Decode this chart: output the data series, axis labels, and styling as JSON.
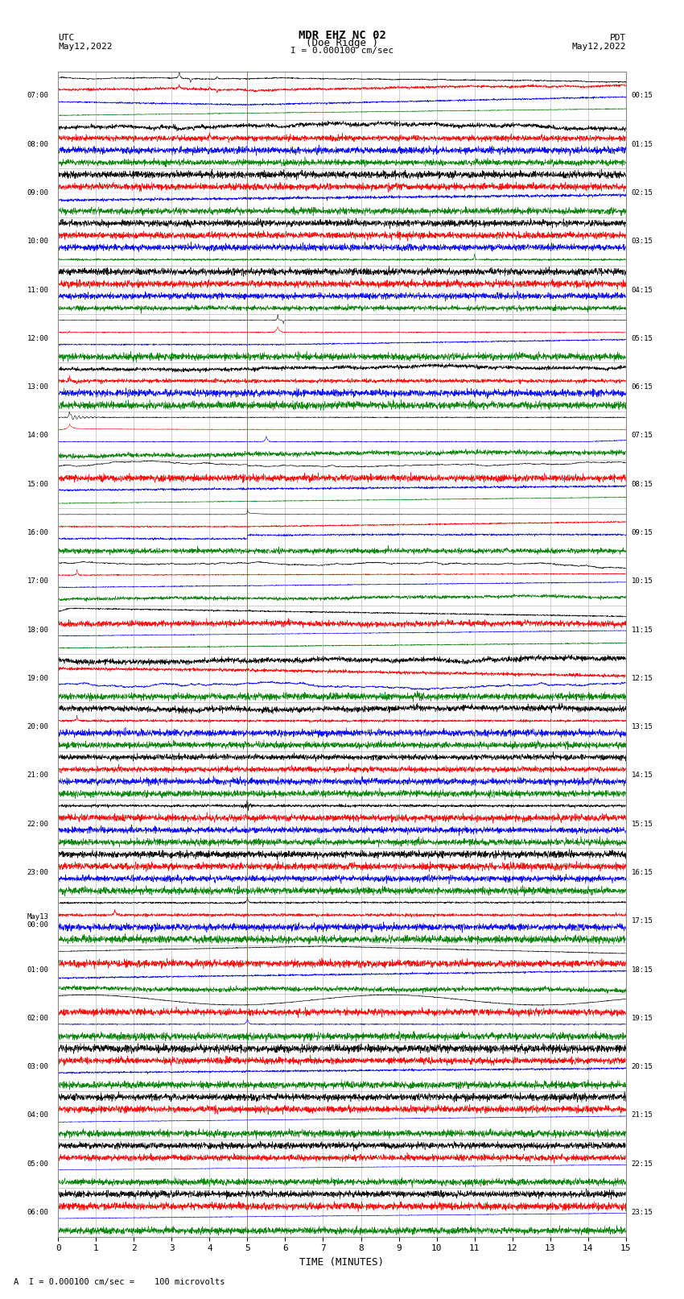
{
  "title_line1": "MDR EHZ NC 02",
  "title_line2": "(Doe Ridge )",
  "scale_label": "I = 0.000100 cm/sec",
  "left_label_top": "UTC",
  "left_label_date": "May12,2022",
  "right_label_top": "PDT",
  "right_label_date": "May12,2022",
  "xlabel": "TIME (MINUTES)",
  "footer": "A  I = 0.000100 cm/sec =    100 microvolts",
  "bg_color": "#ffffff",
  "grid_color": "#bbbbbb",
  "row_colors": [
    "black",
    "red",
    "blue",
    "green"
  ],
  "utc_labels": [
    "07:00",
    "08:00",
    "09:00",
    "10:00",
    "11:00",
    "12:00",
    "13:00",
    "14:00",
    "15:00",
    "16:00",
    "17:00",
    "18:00",
    "19:00",
    "20:00",
    "21:00",
    "22:00",
    "23:00",
    "May13\n00:00",
    "01:00",
    "02:00",
    "03:00",
    "04:00",
    "05:00",
    "06:00"
  ],
  "pdt_labels": [
    "00:15",
    "01:15",
    "02:15",
    "03:15",
    "04:15",
    "05:15",
    "06:15",
    "07:15",
    "08:15",
    "09:15",
    "10:15",
    "11:15",
    "12:15",
    "13:15",
    "14:15",
    "15:15",
    "16:15",
    "17:15",
    "18:15",
    "19:15",
    "20:15",
    "21:15",
    "22:15",
    "23:15"
  ],
  "xmin": 0,
  "xmax": 15,
  "xticks": [
    0,
    1,
    2,
    3,
    4,
    5,
    6,
    7,
    8,
    9,
    10,
    11,
    12,
    13,
    14,
    15
  ],
  "n_rows": 24,
  "n_channels": 4,
  "fig_width": 8.5,
  "fig_height": 16.13
}
